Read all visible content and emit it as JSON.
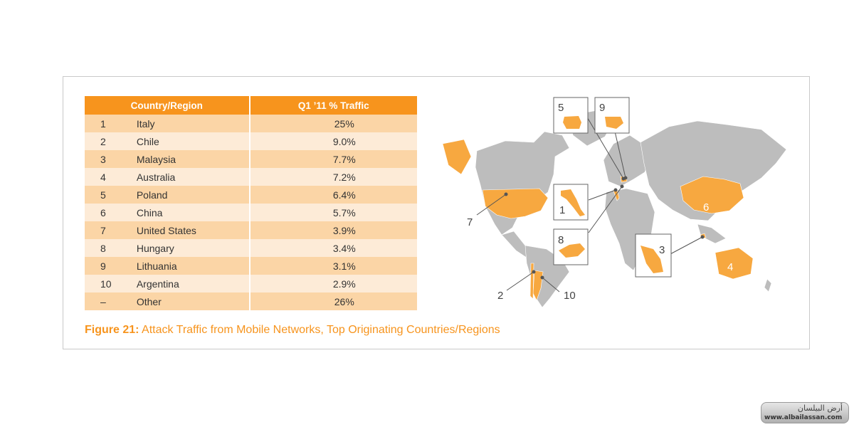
{
  "chart_data": {
    "type": "table",
    "columns": [
      "Country/Region",
      "Q1 ’11 % Traffic"
    ],
    "rows": [
      {
        "rank": "1",
        "country": "Italy",
        "value": "25%"
      },
      {
        "rank": "2",
        "country": "Chile",
        "value": "9.0%"
      },
      {
        "rank": "3",
        "country": "Malaysia",
        "value": "7.7%"
      },
      {
        "rank": "4",
        "country": "Australia",
        "value": "7.2%"
      },
      {
        "rank": "5",
        "country": "Poland",
        "value": "6.4%"
      },
      {
        "rank": "6",
        "country": "China",
        "value": "5.7%"
      },
      {
        "rank": "7",
        "country": "United States",
        "value": "3.9%"
      },
      {
        "rank": "8",
        "country": "Hungary",
        "value": "3.4%"
      },
      {
        "rank": "9",
        "country": "Lithuania",
        "value": "3.1%"
      },
      {
        "rank": "10",
        "country": "Argentina",
        "value": "2.9%"
      },
      {
        "rank": "–",
        "country": "Other",
        "value": "26%"
      }
    ],
    "map_labels": [
      "1",
      "2",
      "3",
      "4",
      "5",
      "6",
      "7",
      "8",
      "9",
      "10"
    ]
  },
  "caption": {
    "label": "Figure 21:",
    "text": " Attack Traffic from Mobile Networks, Top Originating Countries/Regions"
  },
  "colors": {
    "accent": "#f7941d",
    "row_odd": "#fbd5a6",
    "row_even": "#fdebd7",
    "land": "#bdbdbd"
  },
  "watermark": {
    "arabic": "أرض البيلسان",
    "url": "www.albailassan.com"
  }
}
